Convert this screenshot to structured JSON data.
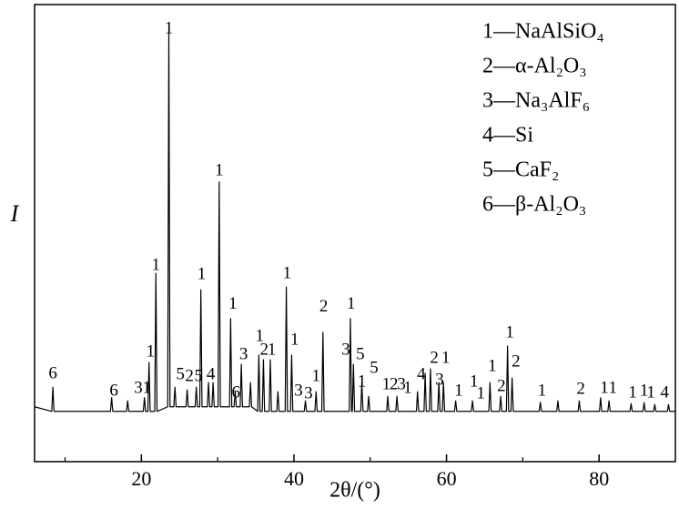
{
  "chart_data": {
    "type": "line",
    "x_label": "2θ/(°)",
    "y_label": "I",
    "color": "#000000",
    "xlim": [
      6,
      90
    ],
    "ylim": [
      0,
      100
    ],
    "xticks": [
      20,
      40,
      60,
      80
    ],
    "xminorticks": [
      10,
      30,
      50,
      70
    ],
    "legend": [
      "1—NaAlSiO₄",
      "2—α-Al₂O₃",
      "3—Na₃AlF₆",
      "4—Si",
      "5—CaF₂",
      "6—β-Al₂O₃"
    ],
    "legend_position": "upper right",
    "x": [
      6.0,
      8.25,
      8.4,
      8.55,
      15.95,
      16.1,
      16.25,
      18.05,
      18.2,
      18.35,
      20.25,
      20.4,
      20.55,
      20.85,
      21.0,
      21.15,
      21.75,
      21.9,
      22.05,
      23.45,
      23.6,
      23.75,
      24.25,
      24.4,
      24.55,
      25.85,
      26.0,
      26.15,
      27.05,
      27.2,
      27.35,
      27.65,
      27.8,
      27.95,
      28.65,
      28.8,
      28.95,
      29.25,
      29.4,
      29.55,
      30.05,
      30.2,
      30.35,
      31.55,
      31.7,
      31.85,
      32.15,
      32.3,
      32.45,
      32.95,
      33.1,
      33.25,
      34.15,
      34.3,
      34.45,
      35.25,
      35.4,
      35.55,
      35.85,
      36.0,
      36.15,
      36.75,
      36.9,
      37.05,
      37.75,
      37.9,
      38.05,
      38.85,
      39.0,
      39.15,
      39.55,
      39.7,
      39.85,
      41.35,
      41.5,
      41.65,
      42.75,
      42.9,
      43.05,
      43.65,
      43.8,
      43.95,
      47.25,
      47.4,
      47.55,
      47.65,
      47.8,
      47.95,
      48.75,
      48.9,
      49.05,
      49.65,
      49.8,
      49.95,
      52.15,
      52.3,
      52.45,
      53.35,
      53.5,
      53.65,
      56.05,
      56.2,
      56.35,
      57.05,
      57.2,
      57.35,
      57.75,
      57.9,
      58.05,
      58.85,
      59.0,
      59.15,
      59.45,
      59.6,
      59.75,
      61.05,
      61.2,
      61.35,
      63.25,
      63.4,
      63.55,
      65.55,
      65.7,
      65.85,
      66.95,
      67.1,
      67.25,
      67.85,
      68.0,
      68.15,
      68.45,
      68.6,
      68.75,
      72.15,
      72.3,
      72.45,
      74.45,
      74.6,
      74.75,
      77.25,
      77.4,
      77.55,
      80.05,
      80.2,
      80.35,
      81.15,
      81.3,
      81.45,
      84.05,
      84.2,
      84.35,
      85.75,
      85.9,
      86.05,
      87.15,
      87.3,
      87.45,
      88.95,
      89.1,
      89.25,
      90.0
    ],
    "values": [
      12,
      11,
      16.3,
      11,
      11,
      14,
      11,
      11,
      13.3,
      11,
      11,
      14,
      11,
      11,
      21.7,
      11,
      11,
      41.2,
      11,
      12,
      95,
      12,
      12,
      16.3,
      12,
      12,
      15.7,
      12,
      12,
      16.3,
      12,
      12,
      37.6,
      12,
      12,
      17.3,
      12,
      12,
      17.3,
      12,
      12,
      61.2,
      12,
      12,
      31.3,
      12,
      12,
      15.3,
      12,
      12,
      21.3,
      12,
      12,
      17.3,
      12,
      11,
      23.3,
      11,
      11,
      22.3,
      11,
      11,
      22.3,
      11,
      11,
      15.3,
      11,
      11,
      38.2,
      11,
      11,
      23.3,
      11,
      11,
      13.3,
      11,
      11,
      15.3,
      11,
      11,
      28.3,
      11,
      11,
      31.3,
      11,
      11,
      21.3,
      11,
      11,
      17.3,
      11,
      11,
      14.3,
      11,
      11,
      14.3,
      11,
      11,
      14.3,
      11,
      11,
      15.3,
      11,
      11,
      19.3,
      11,
      11,
      20.3,
      11,
      11,
      17.3,
      11,
      11,
      17.3,
      11,
      11,
      13.3,
      11,
      11,
      13.3,
      11,
      11,
      17.3,
      11,
      11,
      14.3,
      11,
      11,
      25.3,
      11,
      11,
      18.3,
      11,
      11,
      13,
      11,
      11,
      13.3,
      11,
      11,
      13.3,
      11,
      11,
      14,
      11,
      11,
      13.3,
      11,
      11,
      12.7,
      11,
      11,
      12.9,
      11,
      11,
      12.5,
      11,
      11,
      12.5,
      11,
      11
    ],
    "annotations": [
      {
        "text": "6",
        "x": 8.4,
        "y": 19.1
      },
      {
        "text": "6",
        "x": 16.4,
        "y": 15.3
      },
      {
        "text": "3",
        "x": 19.6,
        "y": 15.9
      },
      {
        "text": "1",
        "x": 20.7,
        "y": 15.9
      },
      {
        "text": "1",
        "x": 21.2,
        "y": 23.9
      },
      {
        "text": "1",
        "x": 21.9,
        "y": 42.8
      },
      {
        "text": "1",
        "x": 23.6,
        "y": 94.6
      },
      {
        "text": "5",
        "x": 25.1,
        "y": 18.9
      },
      {
        "text": "2",
        "x": 26.3,
        "y": 18.5
      },
      {
        "text": "5",
        "x": 27.5,
        "y": 18.5
      },
      {
        "text": "1",
        "x": 27.9,
        "y": 40.8
      },
      {
        "text": "4",
        "x": 29.1,
        "y": 18.9
      },
      {
        "text": "1",
        "x": 30.2,
        "y": 63.5
      },
      {
        "text": "1",
        "x": 32.0,
        "y": 34.3
      },
      {
        "text": "3",
        "x": 33.4,
        "y": 23.3
      },
      {
        "text": "6",
        "x": 32.4,
        "y": 14.9
      },
      {
        "text": "1",
        "x": 35.5,
        "y": 27.3
      },
      {
        "text": "2",
        "x": 36.1,
        "y": 24.3
      },
      {
        "text": "1",
        "x": 37.1,
        "y": 24.3
      },
      {
        "text": "1",
        "x": 39.1,
        "y": 41.0
      },
      {
        "text": "1",
        "x": 40.1,
        "y": 26.5
      },
      {
        "text": "3",
        "x": 40.6,
        "y": 15.3
      },
      {
        "text": "3",
        "x": 41.9,
        "y": 14.7
      },
      {
        "text": "1",
        "x": 42.9,
        "y": 18.5
      },
      {
        "text": "2",
        "x": 43.9,
        "y": 33.7
      },
      {
        "text": "1",
        "x": 47.5,
        "y": 34.3
      },
      {
        "text": "3",
        "x": 46.8,
        "y": 24.3
      },
      {
        "text": "5",
        "x": 48.7,
        "y": 23.3
      },
      {
        "text": "1",
        "x": 48.9,
        "y": 17.3
      },
      {
        "text": "5",
        "x": 50.5,
        "y": 20.3
      },
      {
        "text": "1",
        "x": 52.1,
        "y": 16.7
      },
      {
        "text": "2",
        "x": 53.1,
        "y": 16.7
      },
      {
        "text": "3",
        "x": 54.1,
        "y": 16.7
      },
      {
        "text": "1",
        "x": 54.9,
        "y": 15.9
      },
      {
        "text": "4",
        "x": 56.7,
        "y": 18.9
      },
      {
        "text": "2",
        "x": 58.4,
        "y": 22.5
      },
      {
        "text": "1",
        "x": 59.9,
        "y": 22.5
      },
      {
        "text": "3",
        "x": 59.1,
        "y": 17.7
      },
      {
        "text": "1",
        "x": 61.6,
        "y": 15.3
      },
      {
        "text": "1",
        "x": 63.6,
        "y": 17.3
      },
      {
        "text": "1",
        "x": 64.5,
        "y": 14.7
      },
      {
        "text": "1",
        "x": 66.0,
        "y": 20.7
      },
      {
        "text": "2",
        "x": 67.2,
        "y": 16.3
      },
      {
        "text": "1",
        "x": 68.3,
        "y": 28.1
      },
      {
        "text": "2",
        "x": 69.1,
        "y": 21.7
      },
      {
        "text": "1",
        "x": 72.5,
        "y": 15.3
      },
      {
        "text": "2",
        "x": 77.6,
        "y": 15.7
      },
      {
        "text": "1",
        "x": 80.7,
        "y": 15.9
      },
      {
        "text": "1",
        "x": 81.8,
        "y": 15.9
      },
      {
        "text": "1",
        "x": 84.4,
        "y": 14.9
      },
      {
        "text": "1",
        "x": 85.9,
        "y": 15.3
      },
      {
        "text": "1",
        "x": 86.8,
        "y": 14.9
      },
      {
        "text": "4",
        "x": 88.6,
        "y": 14.9
      }
    ]
  }
}
